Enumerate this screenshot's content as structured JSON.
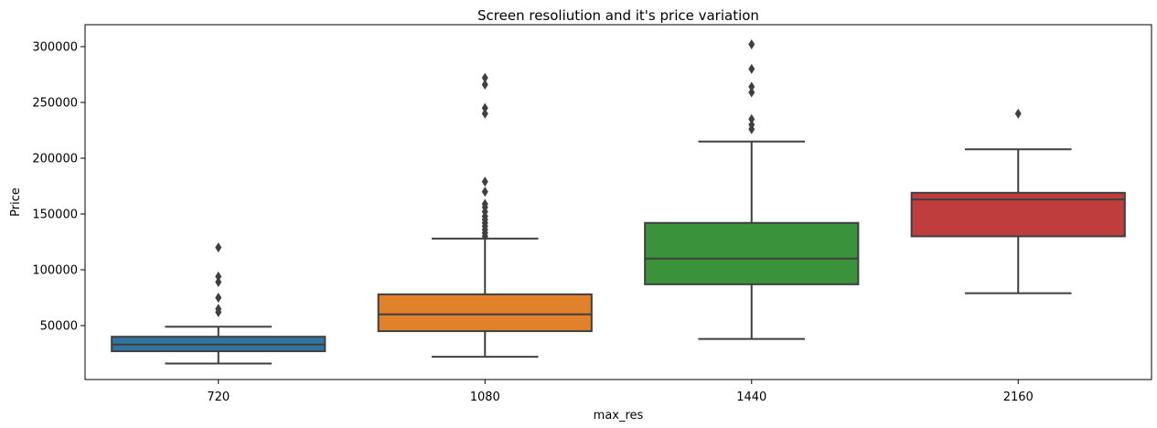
{
  "chart_data": {
    "type": "box",
    "title": "Screen resoliution and it's price variation",
    "xlabel": "max_res",
    "ylabel": "Price",
    "ylim": [
      0,
      315000
    ],
    "yticks": [
      50000,
      100000,
      150000,
      200000,
      250000,
      300000
    ],
    "grid": false,
    "categories": [
      "720",
      "1080",
      "1440",
      "2160"
    ],
    "boxes": [
      {
        "category": "720",
        "color": "#3274a1",
        "whisker_low": 16000,
        "q1": 27000,
        "median": 33000,
        "q3": 40000,
        "whisker_high": 49000,
        "outliers": [
          62000,
          65000,
          75000,
          89000,
          94000,
          120000
        ]
      },
      {
        "category": "1080",
        "color": "#e1812c",
        "whisker_low": 22000,
        "q1": 45000,
        "median": 60000,
        "q3": 78000,
        "whisker_high": 128000,
        "outliers": [
          130000,
          133000,
          136000,
          139000,
          142000,
          145000,
          148000,
          152000,
          156000,
          159000,
          170000,
          179000,
          240000,
          245000,
          266000,
          272000
        ]
      },
      {
        "category": "1440",
        "color": "#3a923a",
        "whisker_low": 38000,
        "q1": 87000,
        "median": 110000,
        "q3": 142000,
        "whisker_high": 215000,
        "outliers": [
          226000,
          230000,
          235000,
          259000,
          264000,
          280000,
          302000
        ]
      },
      {
        "category": "2160",
        "color": "#c03d3e",
        "whisker_low": 79000,
        "q1": 130000,
        "median": 163000,
        "q3": 169000,
        "whisker_high": 208000,
        "outliers": [
          240000
        ]
      }
    ]
  }
}
